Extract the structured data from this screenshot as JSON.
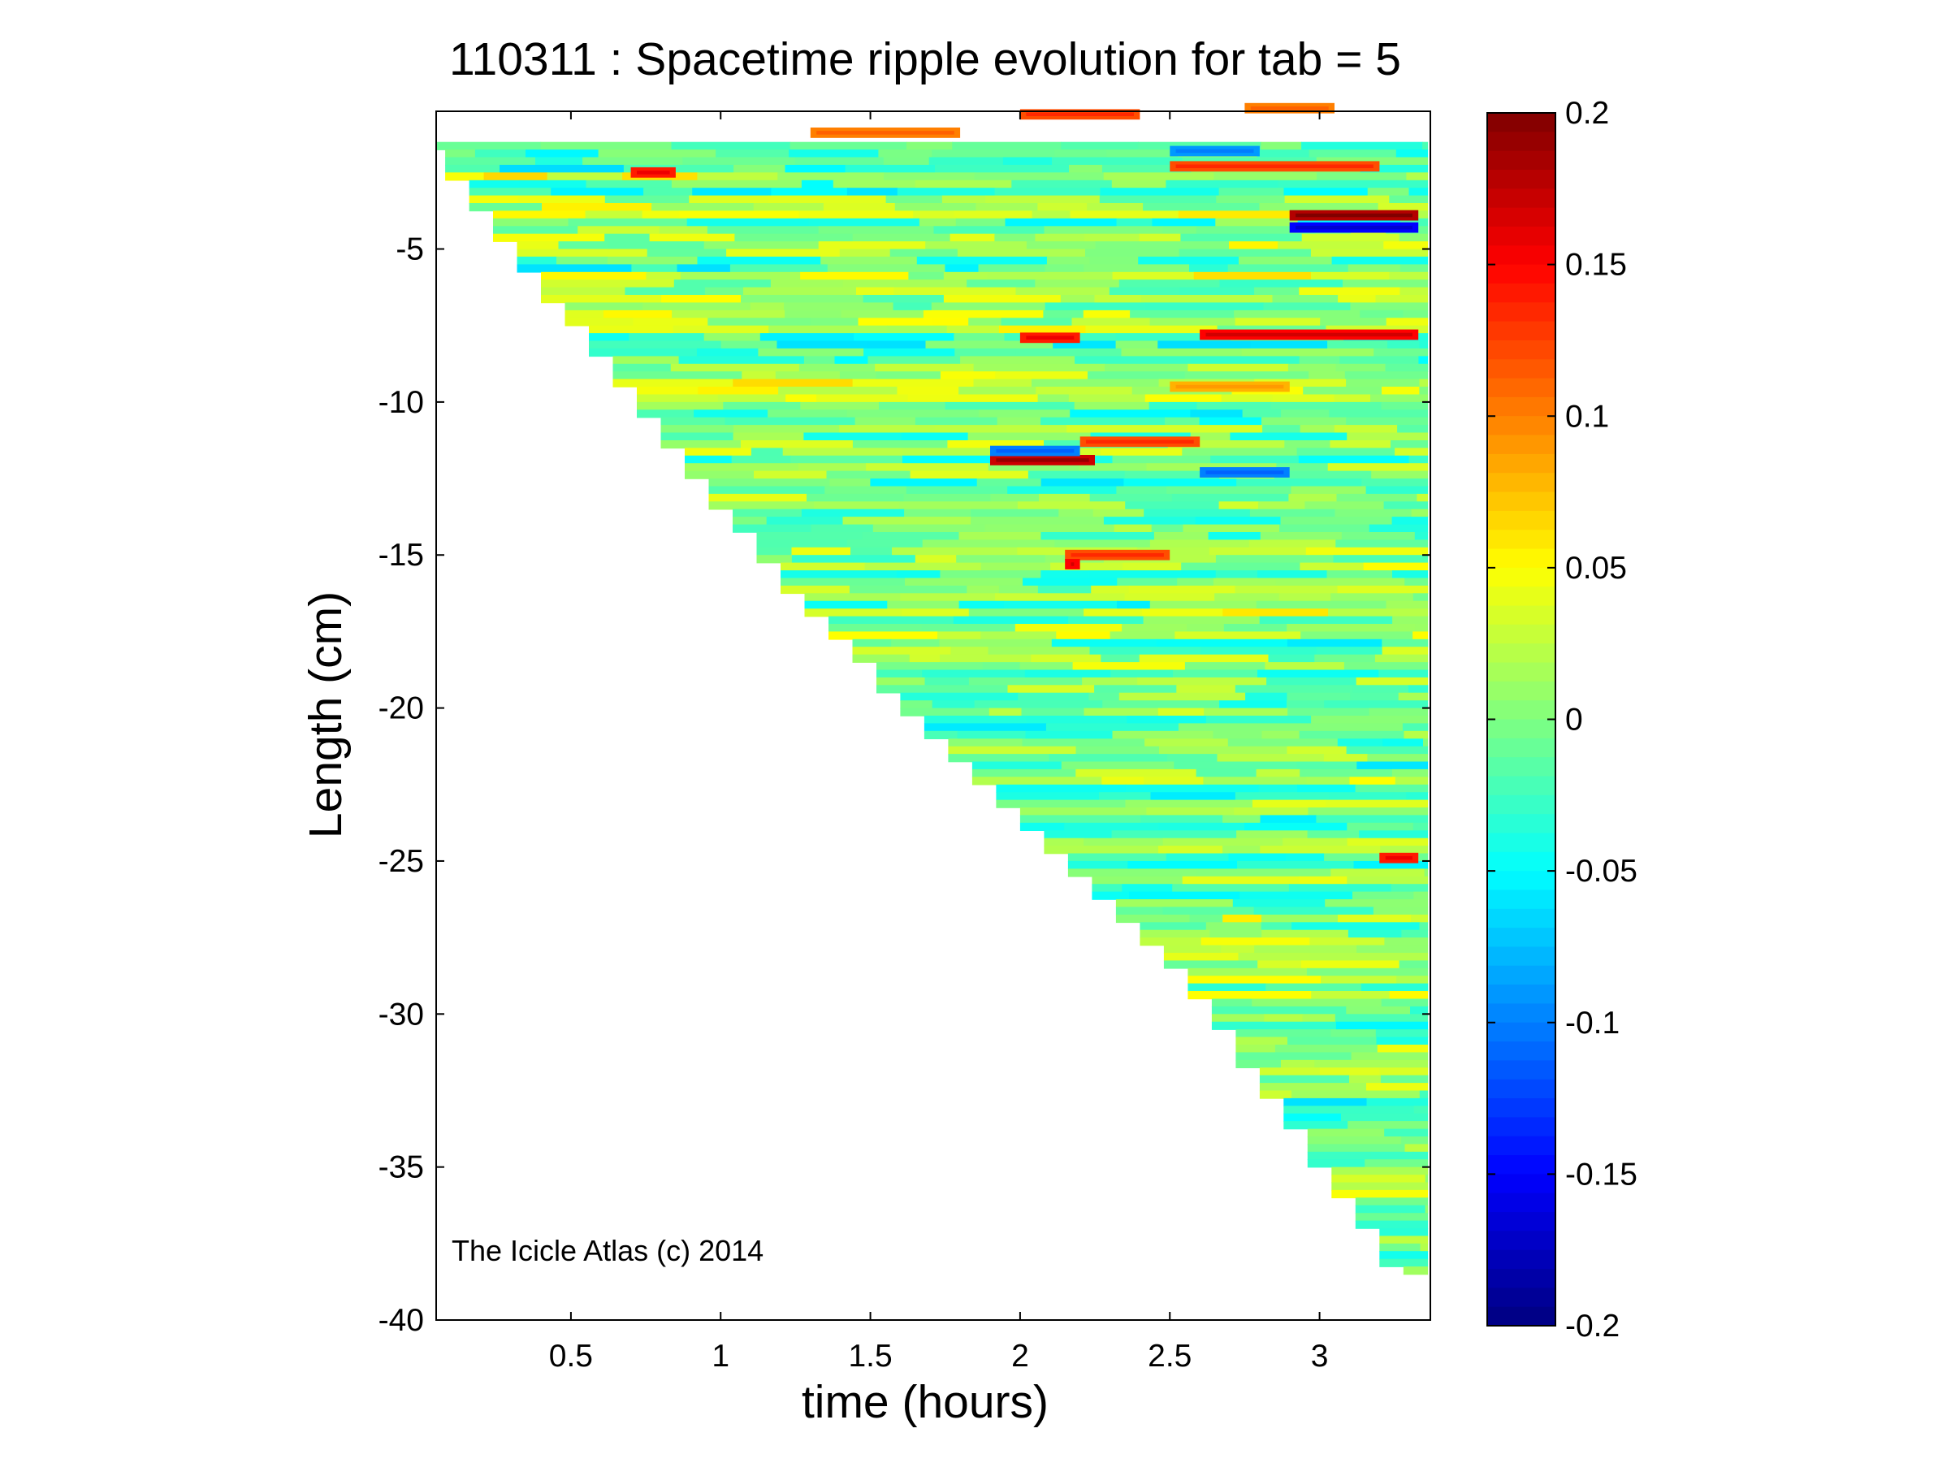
{
  "chart_data": {
    "type": "heatmap",
    "title": "110311 : Spacetime ripple evolution for tab = 5",
    "xlabel": "time (hours)",
    "ylabel": "Length (cm)",
    "xlim": [
      0.05,
      3.37
    ],
    "ylim": [
      -40,
      -0.5
    ],
    "xticks": [
      0.5,
      1,
      1.5,
      2,
      2.5,
      3
    ],
    "xtick_labels": [
      "0.5",
      "1",
      "1.5",
      "2",
      "2.5",
      "3"
    ],
    "yticks": [
      -5,
      -10,
      -15,
      -20,
      -25,
      -30,
      -35,
      -40
    ],
    "ytick_labels": [
      "-5",
      "-10",
      "-15",
      "-20",
      "-25",
      "-30",
      "-35",
      "-40"
    ],
    "colormap": "jet",
    "clim": [
      -0.2,
      0.2
    ],
    "colorbar_ticks": [
      0.2,
      0.15,
      0.1,
      0.05,
      0,
      -0.05,
      -0.1,
      -0.15,
      -0.2
    ],
    "colorbar_tick_labels": [
      "0.2",
      "0.15",
      "0.1",
      "0.05",
      "0",
      "-0.05",
      "-0.1",
      "-0.15",
      "-0.2"
    ],
    "data_boundary": {
      "description": "data region begins along a diagonal edge",
      "points": [
        {
          "time": 0.05,
          "length": -0.5
        },
        {
          "time": 0.05,
          "length": -1.5
        },
        {
          "time": 1.3,
          "length": -16.5
        },
        {
          "time": 2.6,
          "length": -29.0
        },
        {
          "time": 3.3,
          "length": -38.4
        },
        {
          "time": 3.37,
          "length": -38.4
        }
      ]
    },
    "highlights": [
      {
        "time_start": 2.9,
        "time_end": 3.33,
        "length": -3.9,
        "value": 0.18
      },
      {
        "time_start": 2.9,
        "time_end": 3.33,
        "length": -4.3,
        "value": -0.15
      },
      {
        "time_start": 1.9,
        "time_end": 2.25,
        "length": -11.9,
        "value": 0.17
      },
      {
        "time_start": 1.9,
        "time_end": 2.2,
        "length": -11.6,
        "value": -0.1
      },
      {
        "time_start": 2.6,
        "time_end": 3.33,
        "length": -7.8,
        "value": 0.15
      },
      {
        "time_start": 2.0,
        "time_end": 2.2,
        "length": -7.9,
        "value": 0.14
      },
      {
        "time_start": 2.15,
        "time_end": 2.5,
        "length": -15.0,
        "value": 0.12
      },
      {
        "time_start": 2.15,
        "time_end": 2.2,
        "length": -15.3,
        "value": 0.15
      },
      {
        "time_start": 2.5,
        "time_end": 3.2,
        "length": -2.3,
        "value": 0.12
      },
      {
        "time_start": 2.5,
        "time_end": 2.8,
        "length": -1.8,
        "value": -0.09
      },
      {
        "time_start": 0.7,
        "time_end": 0.85,
        "length": -2.5,
        "value": 0.14
      },
      {
        "time_start": 2.2,
        "time_end": 2.6,
        "length": -11.3,
        "value": 0.12
      },
      {
        "time_start": 1.3,
        "time_end": 1.8,
        "length": -1.2,
        "value": 0.1
      },
      {
        "time_start": 2.0,
        "time_end": 2.4,
        "length": -0.6,
        "value": 0.12
      },
      {
        "time_start": 2.6,
        "time_end": 2.9,
        "length": -12.3,
        "value": -0.1
      },
      {
        "time_start": 3.2,
        "time_end": 3.33,
        "length": -24.9,
        "value": 0.14
      },
      {
        "time_start": 2.75,
        "time_end": 3.05,
        "length": -0.4,
        "value": 0.1
      },
      {
        "time_start": 2.5,
        "time_end": 2.9,
        "length": -9.5,
        "value": 0.08
      }
    ]
  },
  "watermark": "The Icicle Atlas (c) 2014"
}
